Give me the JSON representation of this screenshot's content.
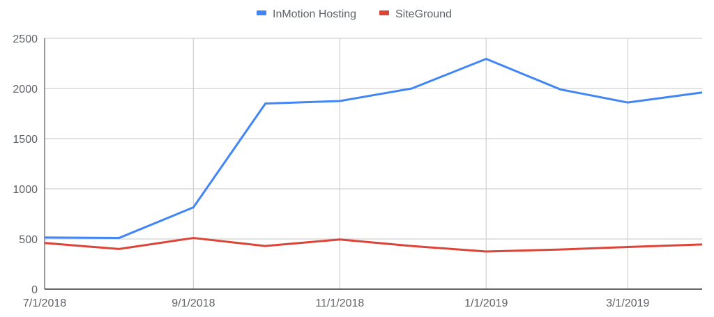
{
  "chart_data": {
    "type": "line",
    "title": "",
    "xlabel": "",
    "ylabel": "",
    "x": [
      "7/1/2018",
      "8/1/2018",
      "9/1/2018",
      "10/1/2018",
      "11/1/2018",
      "12/1/2018",
      "1/1/2019",
      "2/1/2019",
      "3/1/2019",
      "4/1/2019"
    ],
    "x_days": [
      0,
      31,
      62,
      92,
      123,
      153,
      184,
      215,
      243,
      274
    ],
    "x_tick_labels": [
      "7/1/2018",
      "9/1/2018",
      "11/1/2018",
      "1/1/2019",
      "3/1/2019"
    ],
    "x_tick_days": [
      0,
      62,
      123,
      184,
      243
    ],
    "ylim": [
      0,
      2500
    ],
    "y_ticks": [
      0,
      500,
      1000,
      1500,
      2000,
      2500
    ],
    "grid": true,
    "legend_position": "top",
    "series": [
      {
        "name": "InMotion Hosting",
        "color": "#4285f4",
        "values": [
          515,
          510,
          815,
          1850,
          1875,
          2000,
          2295,
          1990,
          1860,
          1960
        ]
      },
      {
        "name": "SiteGround",
        "color": "#db4437",
        "values": [
          460,
          400,
          510,
          430,
          495,
          430,
          375,
          395,
          420,
          445
        ]
      }
    ]
  }
}
